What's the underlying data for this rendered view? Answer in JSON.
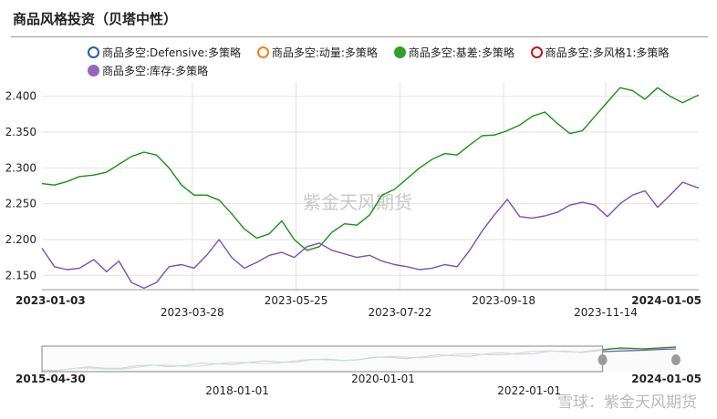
{
  "header": {
    "title": "商品风格投资（贝塔中性）"
  },
  "legend": [
    {
      "label": "商品多空:Defensive:多策略",
      "color": "#1f5fa8",
      "filled": false
    },
    {
      "label": "商品多空:动量:多策略",
      "color": "#f07f1b",
      "filled": false
    },
    {
      "label": "商品多空:基差:多策略",
      "color": "#2ca02c",
      "filled": true
    },
    {
      "label": "商品多空:多风格1:多策略",
      "color": "#c0161d",
      "filled": false
    },
    {
      "label": "商品多空:库存:多策略",
      "color": "#9467bd",
      "filled": true
    }
  ],
  "watermark": "紫金天风期货",
  "footer_watermark": "雪球：紫金天风期货",
  "chart_data": {
    "type": "line",
    "x_range": [
      "2023-01-03",
      "2024-01-05"
    ],
    "ylim": [
      2.13,
      2.42
    ],
    "y_ticks": [
      "2.150",
      "2.200",
      "2.250",
      "2.300",
      "2.350",
      "2.400"
    ],
    "x_ticks_top": [
      "2023-03-28",
      "2023-07-22",
      "2023-11-14"
    ],
    "x_ticks_bottom": [
      "2023-05-25",
      "2023-09-18"
    ],
    "x_edge_labels": [
      "2023-01-03",
      "2024-01-05"
    ],
    "grid": true,
    "series": [
      {
        "name": "商品多空:基差:多策略",
        "color": "#1a8f1a",
        "points": [
          [
            "2023-01-03",
            2.278
          ],
          [
            "2023-01-10",
            2.276
          ],
          [
            "2023-01-17",
            2.281
          ],
          [
            "2023-01-24",
            2.288
          ],
          [
            "2023-02-01",
            2.29
          ],
          [
            "2023-02-08",
            2.294
          ],
          [
            "2023-02-15",
            2.305
          ],
          [
            "2023-02-22",
            2.316
          ],
          [
            "2023-03-01",
            2.322
          ],
          [
            "2023-03-08",
            2.318
          ],
          [
            "2023-03-15",
            2.3
          ],
          [
            "2023-03-22",
            2.276
          ],
          [
            "2023-03-29",
            2.262
          ],
          [
            "2023-04-05",
            2.262
          ],
          [
            "2023-04-12",
            2.255
          ],
          [
            "2023-04-19",
            2.236
          ],
          [
            "2023-04-26",
            2.215
          ],
          [
            "2023-05-03",
            2.202
          ],
          [
            "2023-05-10",
            2.208
          ],
          [
            "2023-05-17",
            2.226
          ],
          [
            "2023-05-24",
            2.2
          ],
          [
            "2023-05-31",
            2.185
          ],
          [
            "2023-06-07",
            2.19
          ],
          [
            "2023-06-14",
            2.21
          ],
          [
            "2023-06-21",
            2.222
          ],
          [
            "2023-06-28",
            2.22
          ],
          [
            "2023-07-05",
            2.234
          ],
          [
            "2023-07-12",
            2.262
          ],
          [
            "2023-07-19",
            2.27
          ],
          [
            "2023-07-26",
            2.285
          ],
          [
            "2023-08-02",
            2.3
          ],
          [
            "2023-08-09",
            2.312
          ],
          [
            "2023-08-16",
            2.32
          ],
          [
            "2023-08-23",
            2.318
          ],
          [
            "2023-08-30",
            2.332
          ],
          [
            "2023-09-06",
            2.345
          ],
          [
            "2023-09-13",
            2.346
          ],
          [
            "2023-09-20",
            2.352
          ],
          [
            "2023-09-27",
            2.36
          ],
          [
            "2023-10-04",
            2.372
          ],
          [
            "2023-10-11",
            2.378
          ],
          [
            "2023-10-18",
            2.362
          ],
          [
            "2023-10-25",
            2.348
          ],
          [
            "2023-11-01",
            2.352
          ],
          [
            "2023-11-08",
            2.372
          ],
          [
            "2023-11-15",
            2.392
          ],
          [
            "2023-11-22",
            2.412
          ],
          [
            "2023-11-29",
            2.408
          ],
          [
            "2023-12-06",
            2.396
          ],
          [
            "2023-12-13",
            2.412
          ],
          [
            "2023-12-20",
            2.4
          ],
          [
            "2023-12-27",
            2.391
          ],
          [
            "2024-01-05",
            2.402
          ]
        ]
      },
      {
        "name": "商品多空:库存:多策略",
        "color": "#7d4fb0",
        "points": [
          [
            "2023-01-03",
            2.188
          ],
          [
            "2023-01-10",
            2.162
          ],
          [
            "2023-01-17",
            2.158
          ],
          [
            "2023-01-24",
            2.16
          ],
          [
            "2023-02-01",
            2.172
          ],
          [
            "2023-02-08",
            2.155
          ],
          [
            "2023-02-15",
            2.17
          ],
          [
            "2023-02-22",
            2.14
          ],
          [
            "2023-03-01",
            2.132
          ],
          [
            "2023-03-08",
            2.14
          ],
          [
            "2023-03-15",
            2.162
          ],
          [
            "2023-03-22",
            2.165
          ],
          [
            "2023-03-29",
            2.16
          ],
          [
            "2023-04-05",
            2.178
          ],
          [
            "2023-04-12",
            2.2
          ],
          [
            "2023-04-19",
            2.175
          ],
          [
            "2023-04-26",
            2.16
          ],
          [
            "2023-05-03",
            2.168
          ],
          [
            "2023-05-10",
            2.178
          ],
          [
            "2023-05-17",
            2.182
          ],
          [
            "2023-05-24",
            2.175
          ],
          [
            "2023-05-31",
            2.19
          ],
          [
            "2023-06-07",
            2.195
          ],
          [
            "2023-06-14",
            2.185
          ],
          [
            "2023-06-21",
            2.18
          ],
          [
            "2023-06-28",
            2.175
          ],
          [
            "2023-07-05",
            2.178
          ],
          [
            "2023-07-12",
            2.17
          ],
          [
            "2023-07-19",
            2.165
          ],
          [
            "2023-07-26",
            2.162
          ],
          [
            "2023-08-02",
            2.158
          ],
          [
            "2023-08-09",
            2.16
          ],
          [
            "2023-08-16",
            2.165
          ],
          [
            "2023-08-23",
            2.162
          ],
          [
            "2023-08-30",
            2.185
          ],
          [
            "2023-09-06",
            2.212
          ],
          [
            "2023-09-13",
            2.235
          ],
          [
            "2023-09-20",
            2.256
          ],
          [
            "2023-09-27",
            2.232
          ],
          [
            "2023-10-04",
            2.23
          ],
          [
            "2023-10-11",
            2.233
          ],
          [
            "2023-10-18",
            2.238
          ],
          [
            "2023-10-25",
            2.248
          ],
          [
            "2023-11-01",
            2.252
          ],
          [
            "2023-11-08",
            2.248
          ],
          [
            "2023-11-15",
            2.232
          ],
          [
            "2023-11-22",
            2.25
          ],
          [
            "2023-11-29",
            2.262
          ],
          [
            "2023-12-06",
            2.268
          ],
          [
            "2023-12-13",
            2.245
          ],
          [
            "2023-12-20",
            2.262
          ],
          [
            "2023-12-27",
            2.28
          ],
          [
            "2024-01-05",
            2.272
          ]
        ]
      }
    ],
    "navigator": {
      "x_range": [
        "2015-04-30",
        "2024-01-05"
      ],
      "ticks_top": [
        "2020-01-01"
      ],
      "ticks_bottom": [
        "2018-01-01",
        "2022-01-01"
      ],
      "edge_labels": [
        "2015-04-30",
        "2024-01-05"
      ],
      "selected_range": [
        "2023-01-03",
        "2024-01-05"
      ]
    }
  }
}
